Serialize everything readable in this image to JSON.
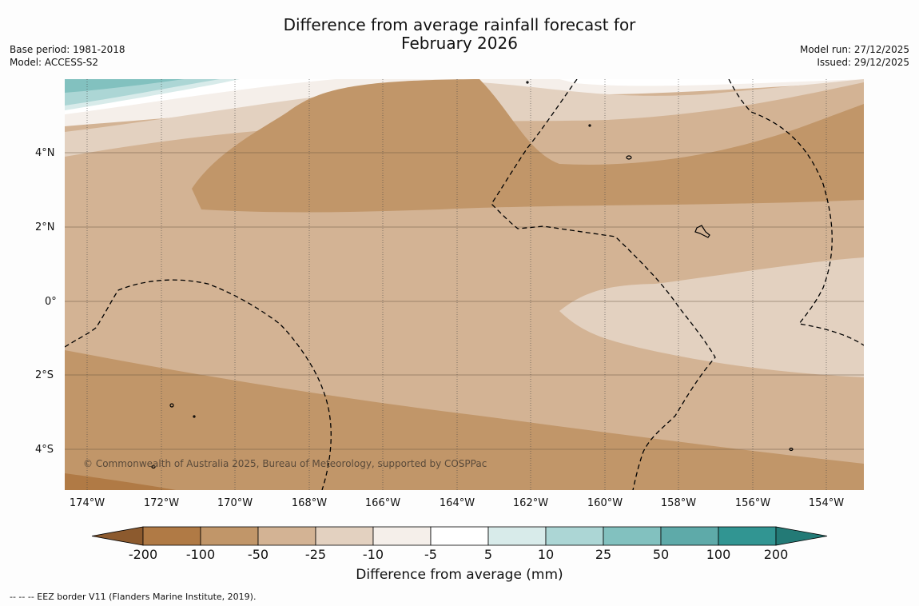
{
  "title_line1": "Difference from average rainfall forecast for",
  "title_line2": "February 2026",
  "base_period": "Base period: 1981-2018",
  "model": "Model: ACCESS-S2",
  "model_run": "Model run: 27/12/2025",
  "issued": "Issued: 29/12/2025",
  "copyright": "© Commonwealth of Australia 2025, Bureau of Meteorology, supported by COSPPac",
  "lat_ticks": [
    "4°N",
    "2°N",
    "0°",
    "2°S",
    "4°S"
  ],
  "lon_ticks": [
    "174°W",
    "172°W",
    "170°W",
    "168°W",
    "166°W",
    "164°W",
    "162°W",
    "160°W",
    "158°W",
    "156°W",
    "154°W"
  ],
  "legend": {
    "title": "Difference from average (mm)",
    "labels": [
      "-200",
      "-100",
      "-50",
      "-25",
      "-10",
      "-5",
      "5",
      "10",
      "25",
      "50",
      "100",
      "200"
    ],
    "colors": [
      "#8c5a2e",
      "#b07a45",
      "#c19669",
      "#d3b394",
      "#e3d1c0",
      "#f5efea",
      "#ffffff",
      "#d8ebea",
      "#acd6d5",
      "#82c1bf",
      "#5eaaa9",
      "#319592",
      "#237a76"
    ]
  },
  "footnote": "--  --  -- EEZ border V11 (Flanders Marine Institute, 2019)."
}
